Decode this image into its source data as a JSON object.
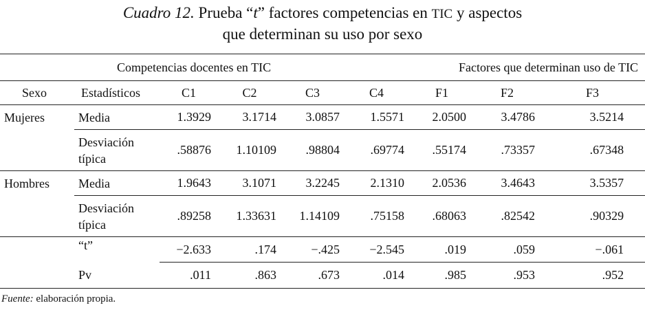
{
  "title": {
    "parts": [
      "Cuadro 12.",
      " Prueba “",
      "t",
      "” factores competencias en ",
      "TIC",
      " y aspectos"
    ],
    "line2": "que determinan su uso por sexo"
  },
  "table": {
    "groups": [
      "Competencias docentes en TIC",
      "Factores que determinan uso de TIC"
    ],
    "header": [
      "Sexo",
      "Estadísticos",
      "C1",
      "C2",
      "C3",
      "C4",
      "F1",
      "F2",
      "F3"
    ],
    "sexes": [
      {
        "sexo": "Mujeres",
        "rows": [
          {
            "stat": "Media",
            "values": [
              "1.3929",
              "3.1714",
              "3.0857",
              "1.5571",
              "2.0500",
              "3.4786",
              "3.5214"
            ]
          },
          {
            "stat": "Desviación típica",
            "values": [
              ".58876",
              "1.10109",
              ".98804",
              ".69774",
              ".55174",
              ".73357",
              ".67348"
            ]
          }
        ]
      },
      {
        "sexo": "Hombres",
        "rows": [
          {
            "stat": "Media",
            "values": [
              "1.9643",
              "3.1071",
              "3.2245",
              "2.1310",
              "2.0536",
              "3.4643",
              "3.5357"
            ]
          },
          {
            "stat": "Desviación típica",
            "values": [
              ".89258",
              "1.33631",
              "1.14109",
              ".75158",
              ".68063",
              ".82542",
              ".90329"
            ]
          }
        ]
      }
    ],
    "tests": [
      {
        "stat": "“t”",
        "values": [
          "−2.633",
          ".174",
          "−.425",
          "−2.545",
          ".019",
          ".059",
          "−.061"
        ]
      },
      {
        "stat": "Pv",
        "values": [
          ".011",
          ".863",
          ".673",
          ".014",
          ".985",
          ".953",
          ".952"
        ]
      }
    ]
  },
  "footer": {
    "label": "Fuente:",
    "text": " elaboración propia."
  }
}
